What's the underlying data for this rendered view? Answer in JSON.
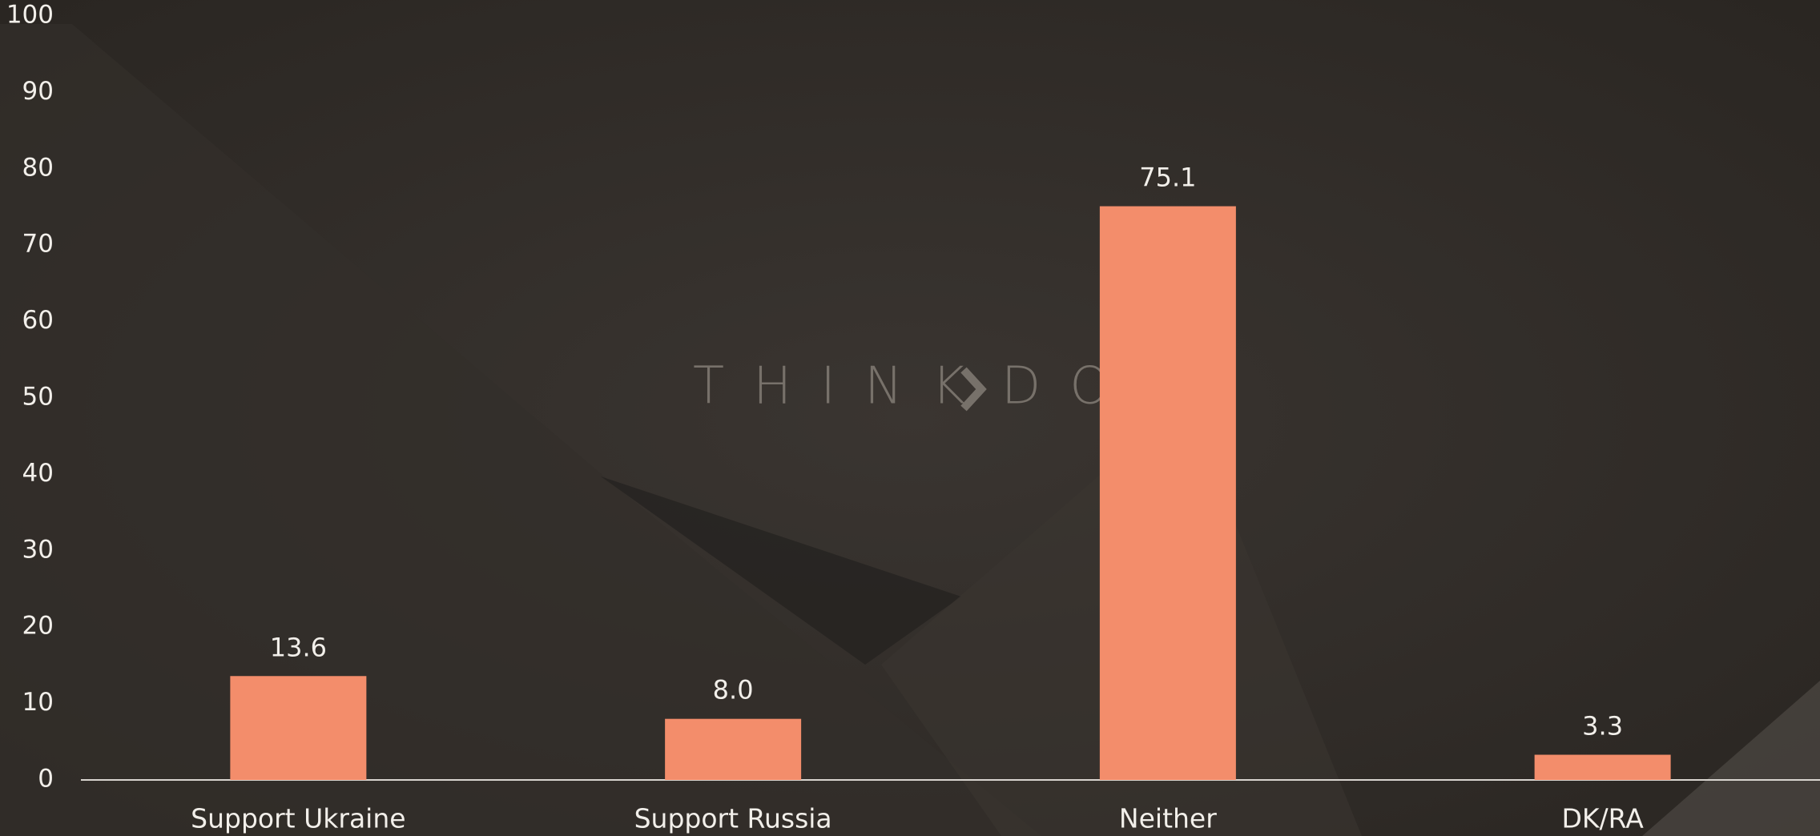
{
  "chart_data": {
    "type": "bar",
    "categories": [
      "Support Ukraine",
      "Support Russia",
      "Neither",
      "DK/RA"
    ],
    "values": [
      13.6,
      8.0,
      75.1,
      3.3
    ],
    "value_labels": [
      "13.6",
      "8.0",
      "75.1",
      "3.3"
    ],
    "color": "#f38d6b",
    "ylim": [
      0,
      100
    ],
    "yticks": [
      0,
      10,
      20,
      30,
      40,
      50,
      60,
      70,
      80,
      90,
      100
    ],
    "grid": false,
    "watermark": [
      "THINK",
      "DO"
    ]
  }
}
